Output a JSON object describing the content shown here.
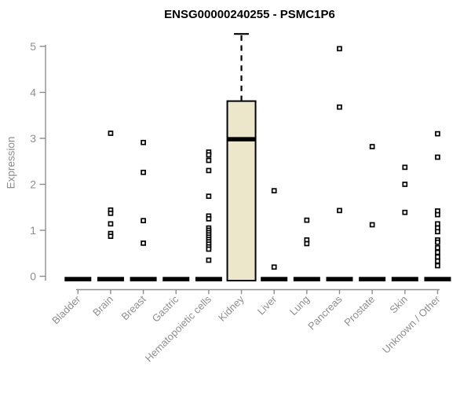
{
  "chart_data": {
    "type": "boxplot",
    "title": "ENSG00000240255 - PSMC1P6",
    "xlabel": "",
    "ylabel": "Expression",
    "ylim": [
      0,
      5.4
    ],
    "yticks": [
      0,
      1,
      2,
      3,
      4,
      5
    ],
    "grid": false,
    "legend": "none",
    "categories": [
      "Bladder",
      "Brain",
      "Breast",
      "Gastric",
      "Hematopoietic cells",
      "Kidney",
      "Liver",
      "Lung",
      "Pancreas",
      "Prostate",
      "Skin",
      "Unknown / Other"
    ],
    "series": [
      {
        "name": "Bladder",
        "q1": 0,
        "median": 0,
        "q3": 0,
        "whisker_low": 0,
        "whisker_high": 0,
        "points": []
      },
      {
        "name": "Brain",
        "q1": 0,
        "median": 0,
        "q3": 0,
        "whisker_low": 0,
        "whisker_high": 0,
        "points": [
          3.11,
          1.44,
          1.37,
          1.14,
          0.93,
          0.87
        ]
      },
      {
        "name": "Breast",
        "q1": 0,
        "median": 0,
        "q3": 0,
        "whisker_low": 0,
        "whisker_high": 0,
        "points": [
          2.91,
          2.26,
          1.21,
          0.72
        ]
      },
      {
        "name": "Gastric",
        "q1": 0,
        "median": 0,
        "q3": 0,
        "whisker_low": 0,
        "whisker_high": 0,
        "points": []
      },
      {
        "name": "Hematopoietic cells",
        "q1": 0,
        "median": 0,
        "q3": 0,
        "whisker_low": 0,
        "whisker_high": 0,
        "points": [
          2.7,
          2.64,
          2.52,
          2.3,
          1.74,
          1.31,
          1.25,
          1.05,
          1.0,
          0.95,
          0.9,
          0.85,
          0.8,
          0.75,
          0.7,
          0.64,
          0.59,
          0.35
        ]
      },
      {
        "name": "Kidney",
        "q1": 0,
        "median": 2.98,
        "q3": 3.81,
        "whisker_low": 0,
        "whisker_high": 5.27,
        "points": []
      },
      {
        "name": "Liver",
        "q1": 0,
        "median": 0,
        "q3": 0,
        "whisker_low": 0,
        "whisker_high": 0,
        "points": [
          1.86,
          0.2
        ]
      },
      {
        "name": "Lung",
        "q1": 0,
        "median": 0,
        "q3": 0,
        "whisker_low": 0,
        "whisker_high": 0,
        "points": [
          1.22,
          0.79,
          0.71
        ]
      },
      {
        "name": "Pancreas",
        "q1": 0,
        "median": 0,
        "q3": 0,
        "whisker_low": 0,
        "whisker_high": 0,
        "points": [
          4.95,
          3.68,
          1.43
        ]
      },
      {
        "name": "Prostate",
        "q1": 0,
        "median": 0,
        "q3": 0,
        "whisker_low": 0,
        "whisker_high": 0,
        "points": [
          2.82,
          1.12
        ]
      },
      {
        "name": "Skin",
        "q1": 0,
        "median": 0,
        "q3": 0,
        "whisker_low": 0,
        "whisker_high": 0,
        "points": [
          2.37,
          2.0,
          1.39
        ]
      },
      {
        "name": "Unknown / Other",
        "q1": 0,
        "median": 0,
        "q3": 0,
        "whisker_low": 0,
        "whisker_high": 0,
        "points": [
          3.1,
          2.59,
          1.42,
          1.34,
          1.14,
          1.05,
          0.97,
          0.79,
          0.74,
          0.62,
          0.52,
          0.42,
          0.33,
          0.23
        ]
      }
    ],
    "colors": {
      "box_fill": "#ece6cb",
      "box_stroke": "#000000",
      "median": "#000000",
      "point_stroke": "#000000",
      "point_fill": "#ffffff",
      "axis": "#8e8e8e",
      "tick_text": "#8e8e8e",
      "title": "#000000",
      "background": "#ffffff"
    }
  }
}
